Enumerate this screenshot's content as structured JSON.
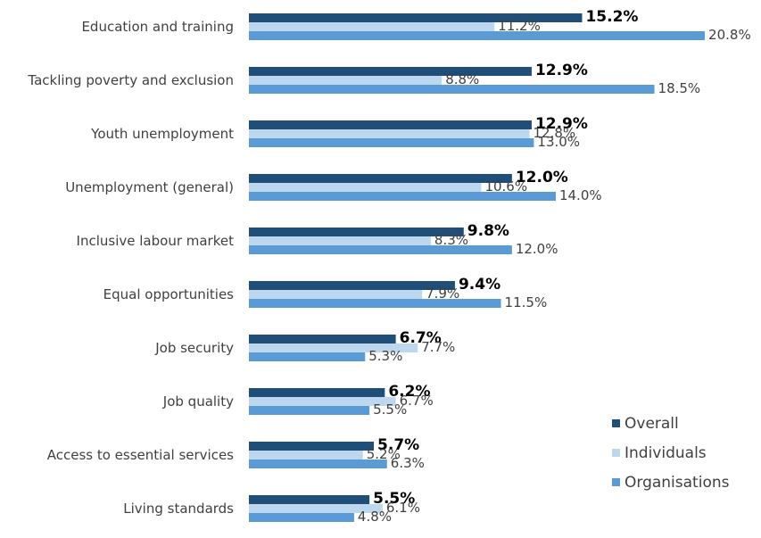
{
  "chart_data": {
    "type": "bar",
    "orientation": "horizontal",
    "categories": [
      "Education and training",
      "Tackling poverty and exclusion",
      "Youth unemployment",
      "Unemployment (general)",
      "Inclusive labour market",
      "Equal opportunities",
      "Job security",
      "Job quality",
      "Access to essential services",
      "Living standards"
    ],
    "series": [
      {
        "name": "Overall",
        "color": "#1f4e79",
        "bold_labels": true,
        "values": [
          15.2,
          12.9,
          12.9,
          12.0,
          9.8,
          9.4,
          6.7,
          6.2,
          5.7,
          5.5
        ],
        "labels": [
          "15.2%",
          "12.9%",
          "12.9%",
          "12.0%",
          "9.8%",
          "9.4%",
          "6.7%",
          "6.2%",
          "5.7%",
          "5.5%"
        ]
      },
      {
        "name": "Individuals",
        "color": "#bdd7ee",
        "bold_labels": false,
        "values": [
          11.2,
          8.8,
          12.8,
          10.6,
          8.3,
          7.9,
          7.7,
          6.7,
          5.2,
          6.1
        ],
        "labels": [
          "11.2%",
          "8.8%",
          "12.8%",
          "10.6%",
          "8.3%",
          "7.9%",
          "7.7%",
          "6.7%",
          "5.2%",
          "6.1%"
        ]
      },
      {
        "name": "Organisations",
        "color": "#5b9bd5",
        "bold_labels": false,
        "values": [
          20.8,
          18.5,
          13.0,
          14.0,
          12.0,
          11.5,
          5.3,
          5.5,
          6.3,
          4.8
        ],
        "labels": [
          "20.8%",
          "18.5%",
          "13.0%",
          "14.0%",
          "12.0%",
          "11.5%",
          "5.3%",
          "5.5%",
          "6.3%",
          "4.8%"
        ]
      }
    ],
    "legend_position": "bottom-right",
    "grid": false
  }
}
